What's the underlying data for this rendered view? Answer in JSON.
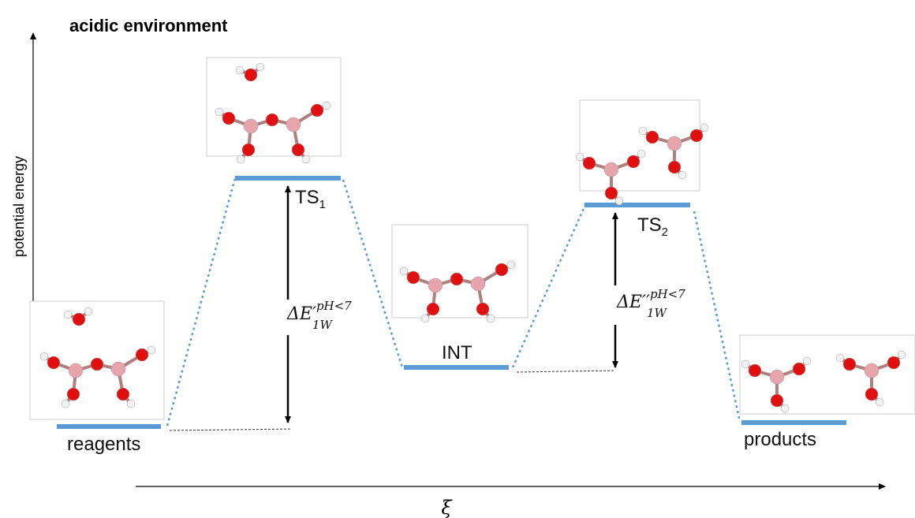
{
  "title": "acidic environment",
  "y_axis_label": "potential energy",
  "x_axis_label": "ξ",
  "levels": [
    {
      "label": "reagents"
    },
    {
      "label": "TS",
      "subscript": "1"
    },
    {
      "label": "INT"
    },
    {
      "label": "TS",
      "subscript": "2"
    },
    {
      "label": "products"
    }
  ],
  "barriers": [
    {
      "symbol": "ΔE′",
      "superscript": "pH<7",
      "subscript": "1W"
    },
    {
      "symbol": "ΔE′′",
      "superscript": "pH<7",
      "subscript": "1W"
    }
  ]
}
